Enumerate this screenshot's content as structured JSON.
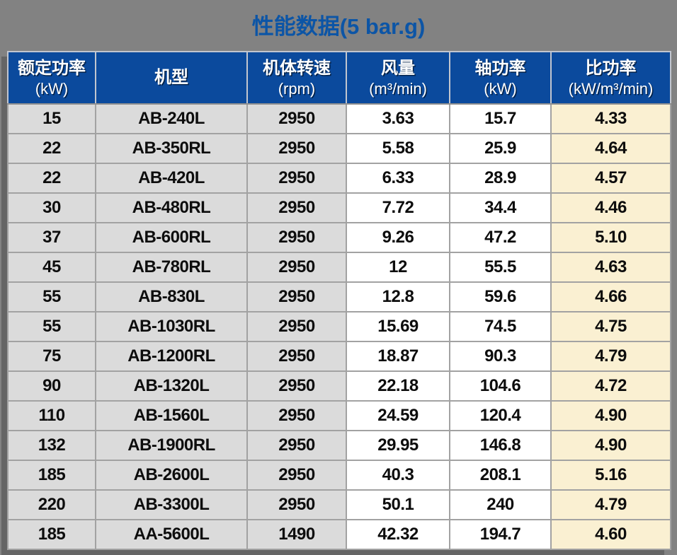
{
  "title": "性能数据(5 bar.g)",
  "colors": {
    "page_bg": "#828282",
    "title_color": "#0C55A6",
    "header_bg": "#0B4A9D",
    "gray_cell": "#DBDBDB",
    "cream_cell": "#FAF0D2"
  },
  "table": {
    "headers": [
      {
        "line1": "额定功率",
        "line2": "(kW)"
      },
      {
        "line1": "机型",
        "line2": ""
      },
      {
        "line1": "机体转速",
        "line2": "(rpm)"
      },
      {
        "line1": "风量",
        "line2": "(m³/min)"
      },
      {
        "line1": "轴功率",
        "line2": "(kW)"
      },
      {
        "line1": "比功率",
        "line2": "(kW/m³/min)"
      }
    ],
    "rows": [
      [
        "15",
        "AB-240L",
        "2950",
        "3.63",
        "15.7",
        "4.33"
      ],
      [
        "22",
        "AB-350RL",
        "2950",
        "5.58",
        "25.9",
        "4.64"
      ],
      [
        "22",
        "AB-420L",
        "2950",
        "6.33",
        "28.9",
        "4.57"
      ],
      [
        "30",
        "AB-480RL",
        "2950",
        "7.72",
        "34.4",
        "4.46"
      ],
      [
        "37",
        "AB-600RL",
        "2950",
        "9.26",
        "47.2",
        "5.10"
      ],
      [
        "45",
        "AB-780RL",
        "2950",
        "12",
        "55.5",
        "4.63"
      ],
      [
        "55",
        "AB-830L",
        "2950",
        "12.8",
        "59.6",
        "4.66"
      ],
      [
        "55",
        "AB-1030RL",
        "2950",
        "15.69",
        "74.5",
        "4.75"
      ],
      [
        "75",
        "AB-1200RL",
        "2950",
        "18.87",
        "90.3",
        "4.79"
      ],
      [
        "90",
        "AB-1320L",
        "2950",
        "22.18",
        "104.6",
        "4.72"
      ],
      [
        "110",
        "AB-1560L",
        "2950",
        "24.59",
        "120.4",
        "4.90"
      ],
      [
        "132",
        "AB-1900RL",
        "2950",
        "29.95",
        "146.8",
        "4.90"
      ],
      [
        "185",
        "AB-2600L",
        "2950",
        "40.3",
        "208.1",
        "5.16"
      ],
      [
        "220",
        "AB-3300L",
        "2950",
        "50.1",
        "240",
        "4.79"
      ],
      [
        "185",
        "AA-5600L",
        "1490",
        "42.32",
        "194.7",
        "4.60"
      ]
    ]
  }
}
